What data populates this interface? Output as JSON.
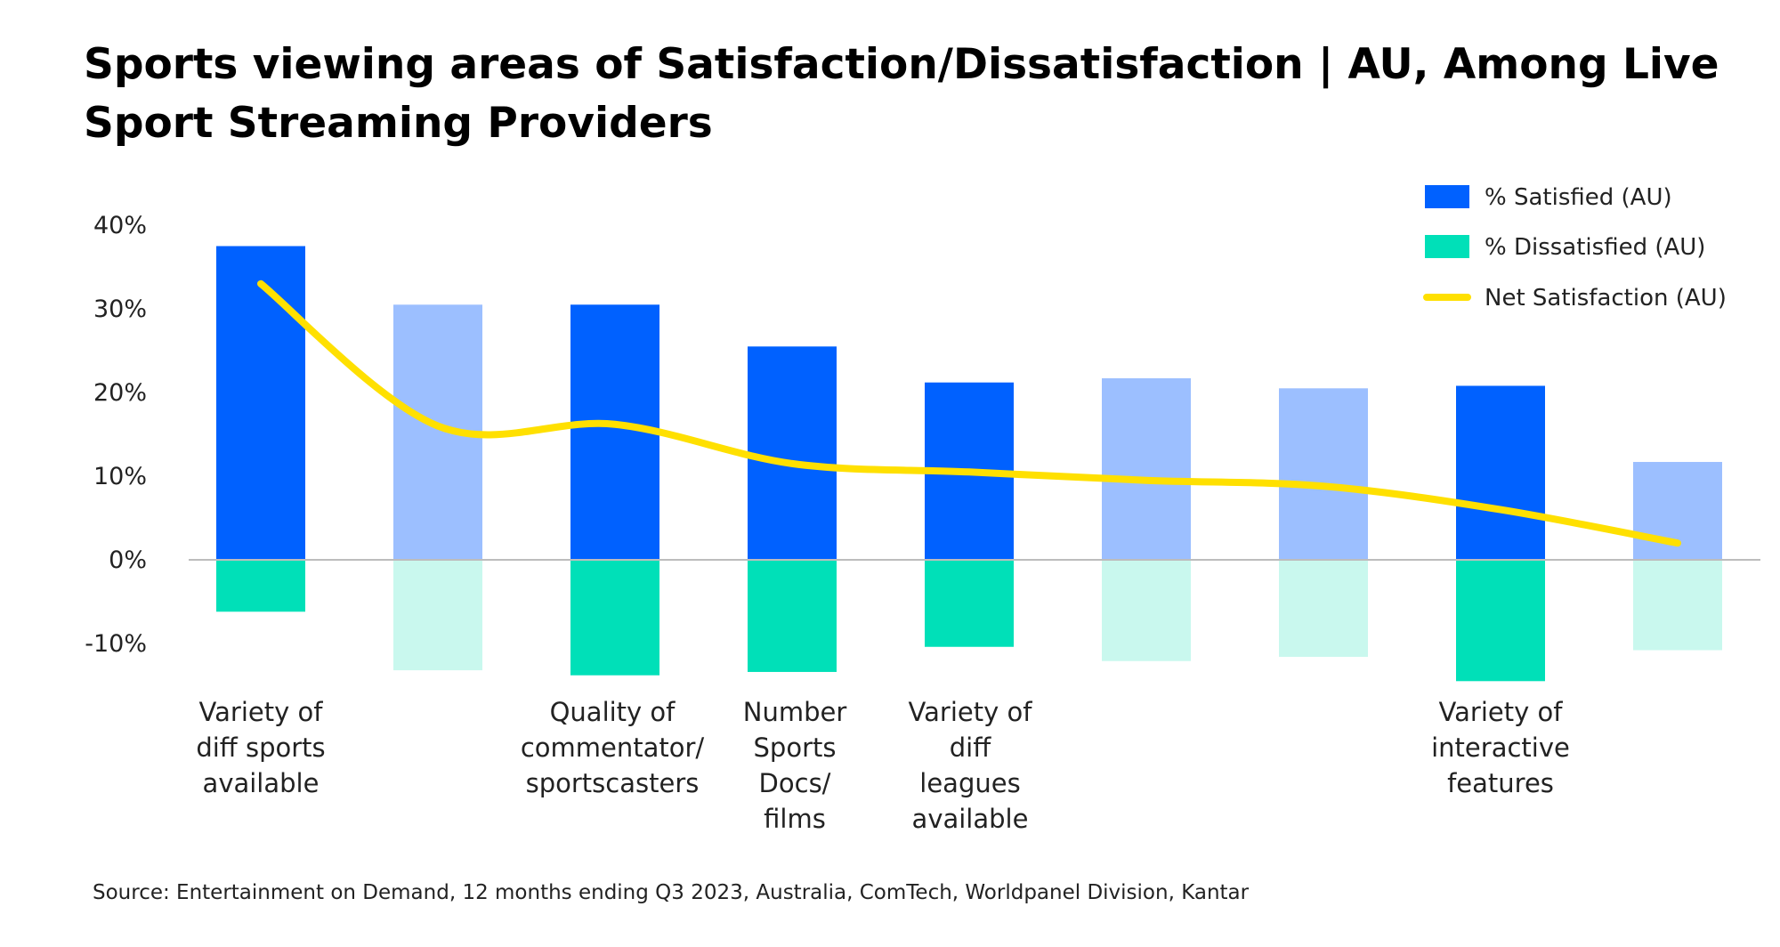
{
  "title": "Sports viewing areas of Satisfaction/Dissatisfaction | AU, Among Live Sport Streaming Providers",
  "source": "Source: Entertainment on Demand, 12 months ending Q3 2023, Australia, ComTech, Worldpanel Division, Kantar",
  "chart_data": {
    "type": "bar",
    "categories": [
      [
        "Variety of",
        "diff sports",
        "available"
      ],
      [],
      [
        "Quality of",
        "commentator/",
        "sportscasters"
      ],
      [
        "Number",
        "Sports",
        "Docs/",
        "films"
      ],
      [
        "Variety of",
        "diff",
        "leagues",
        "available"
      ],
      [],
      [],
      [
        "Variety of",
        "interactive",
        "features"
      ],
      []
    ],
    "highlighted": [
      true,
      false,
      true,
      true,
      true,
      false,
      false,
      true,
      false
    ],
    "series": [
      {
        "name": "% Satisfied (AU)",
        "type": "bar",
        "values": [
          37.5,
          30.5,
          30.5,
          25.5,
          21.2,
          21.7,
          20.5,
          20.8,
          11.7
        ]
      },
      {
        "name": "% Dissatisfied (AU)",
        "type": "bar",
        "values": [
          -6.2,
          -13.2,
          -13.8,
          -13.4,
          -10.4,
          -12.1,
          -11.6,
          -14.5,
          -10.8
        ]
      },
      {
        "name": "Net Satisfaction (AU)",
        "type": "line",
        "values": [
          33,
          16,
          16.2,
          11.5,
          10.5,
          9.5,
          8.8,
          6,
          2
        ]
      }
    ],
    "y_ticks": [
      40,
      30,
      20,
      10,
      0,
      -10
    ],
    "y_tick_labels": [
      "40%",
      "30%",
      "20%",
      "10%",
      "0%",
      "-10%"
    ],
    "ylim": [
      -14.5,
      40
    ],
    "legend_position": "top-right",
    "colors": {
      "satisfied": "#0061FF",
      "satisfied_light": "#9CBFFF",
      "dissatisfied": "#00E0B8",
      "dissatisfied_light": "#C9F8EE",
      "net": "#FFE000",
      "axis": "#bdbdbd"
    }
  }
}
